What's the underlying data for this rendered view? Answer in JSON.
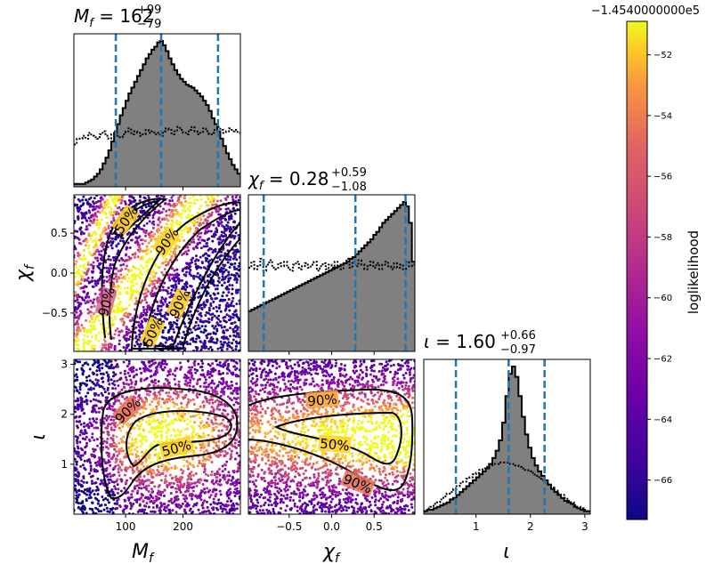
{
  "figure": {
    "colorbar": {
      "label": "loglikelihood",
      "offset_text": "−1.4540000000e5",
      "ticks": [
        -52,
        -54,
        -56,
        -58,
        -60,
        -62,
        -64,
        -66
      ],
      "range": [
        -67.3,
        -50.9
      ],
      "colormap": "plasma"
    }
  },
  "chart_data": [
    {
      "type": "histogram",
      "parameter": "M_f",
      "title": "M_f = 162 (+99, −79)",
      "title_parts": {
        "name": "M",
        "sub": "f",
        "value": "162",
        "plus": "+99",
        "minus": "−79"
      },
      "xlim": [
        10,
        300
      ],
      "xticks": [
        100,
        200
      ],
      "quantiles": [
        83,
        162,
        261
      ],
      "bins": {
        "edges_start": 10,
        "edges_step": 5,
        "posterior": [
          0.02,
          0.02,
          0.02,
          0.02,
          0.03,
          0.04,
          0.05,
          0.07,
          0.09,
          0.12,
          0.16,
          0.2,
          0.25,
          0.31,
          0.37,
          0.43,
          0.49,
          0.54,
          0.59,
          0.64,
          0.68,
          0.72,
          0.76,
          0.8,
          0.84,
          0.88,
          0.91,
          0.94,
          0.96,
          0.99,
          1,
          0.97,
          0.93,
          0.88,
          0.84,
          0.8,
          0.77,
          0.74,
          0.72,
          0.7,
          0.69,
          0.68,
          0.66,
          0.64,
          0.62,
          0.59,
          0.56,
          0.52,
          0.47,
          0.43,
          0.38,
          0.33,
          0.28,
          0.23,
          0.19,
          0.15,
          0.12,
          0.09
        ],
        "prior": [
          0.29,
          0.33,
          0.33,
          0.35,
          0.33,
          0.37,
          0.35,
          0.34,
          0.33,
          0.36,
          0.38,
          0.35,
          0.33,
          0.36,
          0.38,
          0.35,
          0.34,
          0.36,
          0.38,
          0.4,
          0.36,
          0.38,
          0.37,
          0.35,
          0.36,
          0.39,
          0.37,
          0.38,
          0.36,
          0.37,
          0.35,
          0.38,
          0.4,
          0.39,
          0.36,
          0.38,
          0.41,
          0.39,
          0.37,
          0.36,
          0.39,
          0.41,
          0.38,
          0.36,
          0.37,
          0.4,
          0.38,
          0.36,
          0.37,
          0.39,
          0.41,
          0.39,
          0.37,
          0.38,
          0.4,
          0.38,
          0.39,
          0.37
        ]
      }
    },
    {
      "type": "histogram",
      "parameter": "chi_f",
      "title": "χ_f = 0.28 (+0.59, −1.08)",
      "title_parts": {
        "name": "χ",
        "sub": "f",
        "value": "0.28",
        "plus": "+0.59",
        "minus": "−1.08"
      },
      "xlim": [
        -0.98,
        0.98
      ],
      "xticks": [
        -0.5,
        0.0,
        0.5
      ],
      "xticklabels": [
        "−0.5",
        "0.0",
        "0.5"
      ],
      "quantiles": [
        -0.8,
        0.28,
        0.87
      ],
      "bins": {
        "edges_start": -0.98,
        "edges_step": 0.035,
        "posterior": [
          0.27,
          0.28,
          0.29,
          0.3,
          0.31,
          0.32,
          0.33,
          0.34,
          0.35,
          0.36,
          0.37,
          0.38,
          0.39,
          0.4,
          0.41,
          0.42,
          0.43,
          0.44,
          0.45,
          0.46,
          0.47,
          0.48,
          0.49,
          0.5,
          0.51,
          0.52,
          0.53,
          0.54,
          0.55,
          0.56,
          0.57,
          0.58,
          0.59,
          0.6,
          0.62,
          0.63,
          0.65,
          0.67,
          0.69,
          0.71,
          0.73,
          0.75,
          0.78,
          0.8,
          0.83,
          0.86,
          0.88,
          0.9,
          0.92,
          0.94,
          0.96,
          0.98,
          1,
          0.97,
          0.86,
          0.6
        ],
        "prior": [
          0.56,
          0.6,
          0.55,
          0.57,
          0.62,
          0.54,
          0.58,
          0.61,
          0.56,
          0.55,
          0.59,
          0.57,
          0.6,
          0.56,
          0.54,
          0.58,
          0.6,
          0.55,
          0.57,
          0.59,
          0.56,
          0.58,
          0.6,
          0.54,
          0.57,
          0.59,
          0.55,
          0.58,
          0.56,
          0.6,
          0.57,
          0.55,
          0.59,
          0.62,
          0.56,
          0.6,
          0.57,
          0.61,
          0.58,
          0.55,
          0.57,
          0.6,
          0.56,
          0.59,
          0.55,
          0.58,
          0.6,
          0.57,
          0.55,
          0.59,
          0.56,
          0.58,
          0.55,
          0.6,
          0.57,
          0.58
        ]
      }
    },
    {
      "type": "histogram",
      "parameter": "iota",
      "title": "ι = 1.60 (+0.66, −0.97)",
      "title_parts": {
        "name": "ι",
        "sub": "",
        "value": "1.60",
        "plus": "+0.66",
        "minus": "−0.97"
      },
      "xlim": [
        0.04,
        3.1
      ],
      "xticks": [
        1,
        2,
        3
      ],
      "quantiles": [
        0.63,
        1.6,
        2.26
      ],
      "bins": {
        "edges_start": 0.04,
        "edges_step": 0.06,
        "posterior": [
          0.02,
          0.03,
          0.03,
          0.04,
          0.05,
          0.06,
          0.07,
          0.08,
          0.1,
          0.11,
          0.13,
          0.15,
          0.17,
          0.19,
          0.21,
          0.23,
          0.25,
          0.27,
          0.29,
          0.31,
          0.34,
          0.38,
          0.43,
          0.5,
          0.62,
          0.8,
          0.95,
          1,
          0.93,
          0.8,
          0.66,
          0.54,
          0.45,
          0.38,
          0.33,
          0.29,
          0.26,
          0.23,
          0.2,
          0.17,
          0.15,
          0.13,
          0.11,
          0.09,
          0.08,
          0.07,
          0.05,
          0.04,
          0.03,
          0.02,
          0.02
        ],
        "prior": [
          0.02,
          0.04,
          0.05,
          0.07,
          0.08,
          0.1,
          0.12,
          0.14,
          0.15,
          0.17,
          0.19,
          0.21,
          0.22,
          0.24,
          0.25,
          0.27,
          0.28,
          0.3,
          0.31,
          0.32,
          0.33,
          0.34,
          0.34,
          0.35,
          0.35,
          0.35,
          0.34,
          0.34,
          0.33,
          0.32,
          0.31,
          0.3,
          0.29,
          0.28,
          0.26,
          0.25,
          0.23,
          0.21,
          0.2,
          0.18,
          0.16,
          0.14,
          0.13,
          0.11,
          0.09,
          0.08,
          0.06,
          0.05,
          0.04,
          0.03,
          0.02
        ]
      }
    },
    {
      "type": "scatter",
      "x_parameter": "M_f",
      "y_parameter": "chi_f",
      "xlim": [
        10,
        300
      ],
      "ylim": [
        -0.98,
        0.98
      ],
      "yticks": [
        -0.5,
        0.0,
        0.5
      ],
      "yticklabels": [
        "−0.5",
        "0.0",
        "0.5"
      ],
      "ylabel": "χ_f",
      "ylabel_parts": {
        "name": "χ",
        "sub": "f"
      },
      "contour_labels": [
        "50%",
        "90%",
        "90%",
        "90%",
        "50%",
        "90%"
      ]
    },
    {
      "type": "scatter",
      "x_parameter": "M_f",
      "y_parameter": "iota",
      "xlim": [
        10,
        300
      ],
      "ylim": [
        0,
        3.1
      ],
      "xticks": [
        100,
        200
      ],
      "yticks": [
        1,
        2,
        3
      ],
      "xlabel": "M_f",
      "ylabel": "ι",
      "xlabel_parts": {
        "name": "M",
        "sub": "f"
      },
      "ylabel_parts": {
        "name": "ι",
        "sub": ""
      },
      "contour_labels": [
        "90%",
        "50%"
      ]
    },
    {
      "type": "scatter",
      "x_parameter": "chi_f",
      "y_parameter": "iota",
      "xlim": [
        -0.98,
        0.98
      ],
      "ylim": [
        0,
        3.1
      ],
      "xticks": [
        -0.5,
        0.0,
        0.5
      ],
      "xticklabels": [
        "−0.5",
        "0.0",
        "0.5"
      ],
      "xlabel": "χ_f",
      "xlabel_parts": {
        "name": "χ",
        "sub": "f"
      },
      "contour_labels": [
        "90%",
        "50%",
        "90%"
      ]
    },
    {
      "type": "histogram-axis",
      "parameter": "iota",
      "xlabel": "ι",
      "xlabel_parts": {
        "name": "ι",
        "sub": ""
      }
    }
  ]
}
